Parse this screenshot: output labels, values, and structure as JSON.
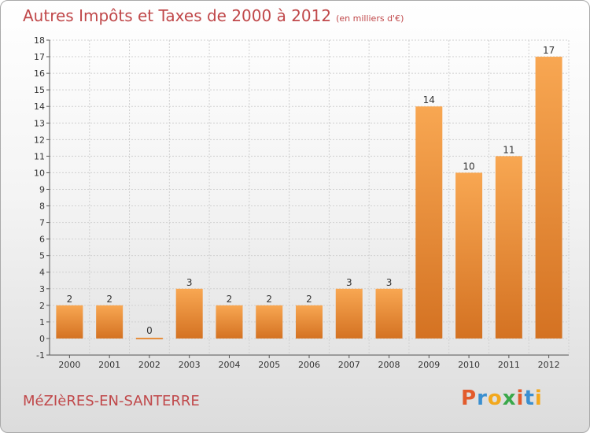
{
  "title": "Autres Impôts et Taxes de 2000 à 2012",
  "subtitle": "(en milliers d'€)",
  "commune": "MéZIèRES-EN-SANTERRE",
  "logo": {
    "letters": [
      "P",
      "r",
      "o",
      "x",
      "i",
      "t",
      "i"
    ],
    "colors": [
      "#e25b2c",
      "#3a8fd0",
      "#f2a81d",
      "#3aa84a",
      "#e25b2c",
      "#3a8fd0",
      "#f2a81d"
    ]
  },
  "colors": {
    "bar_top": "#f8a752",
    "bar_bottom": "#d47222",
    "title": "#c0484a"
  },
  "chart_data": {
    "type": "bar",
    "title": "Autres Impôts et Taxes de 2000 à 2012",
    "subtitle": "(en milliers d'€)",
    "categories": [
      "2000",
      "2001",
      "2002",
      "2003",
      "2004",
      "2005",
      "2006",
      "2007",
      "2008",
      "2009",
      "2010",
      "2011",
      "2012"
    ],
    "values": [
      2,
      2,
      0,
      3,
      2,
      2,
      2,
      3,
      3,
      14,
      10,
      11,
      17
    ],
    "ylim": [
      -1,
      18
    ],
    "yticks": [
      -1,
      0,
      1,
      2,
      3,
      4,
      5,
      6,
      7,
      8,
      9,
      10,
      11,
      12,
      13,
      14,
      15,
      16,
      17,
      18
    ],
    "grid": true,
    "xlabel": "",
    "ylabel": ""
  }
}
